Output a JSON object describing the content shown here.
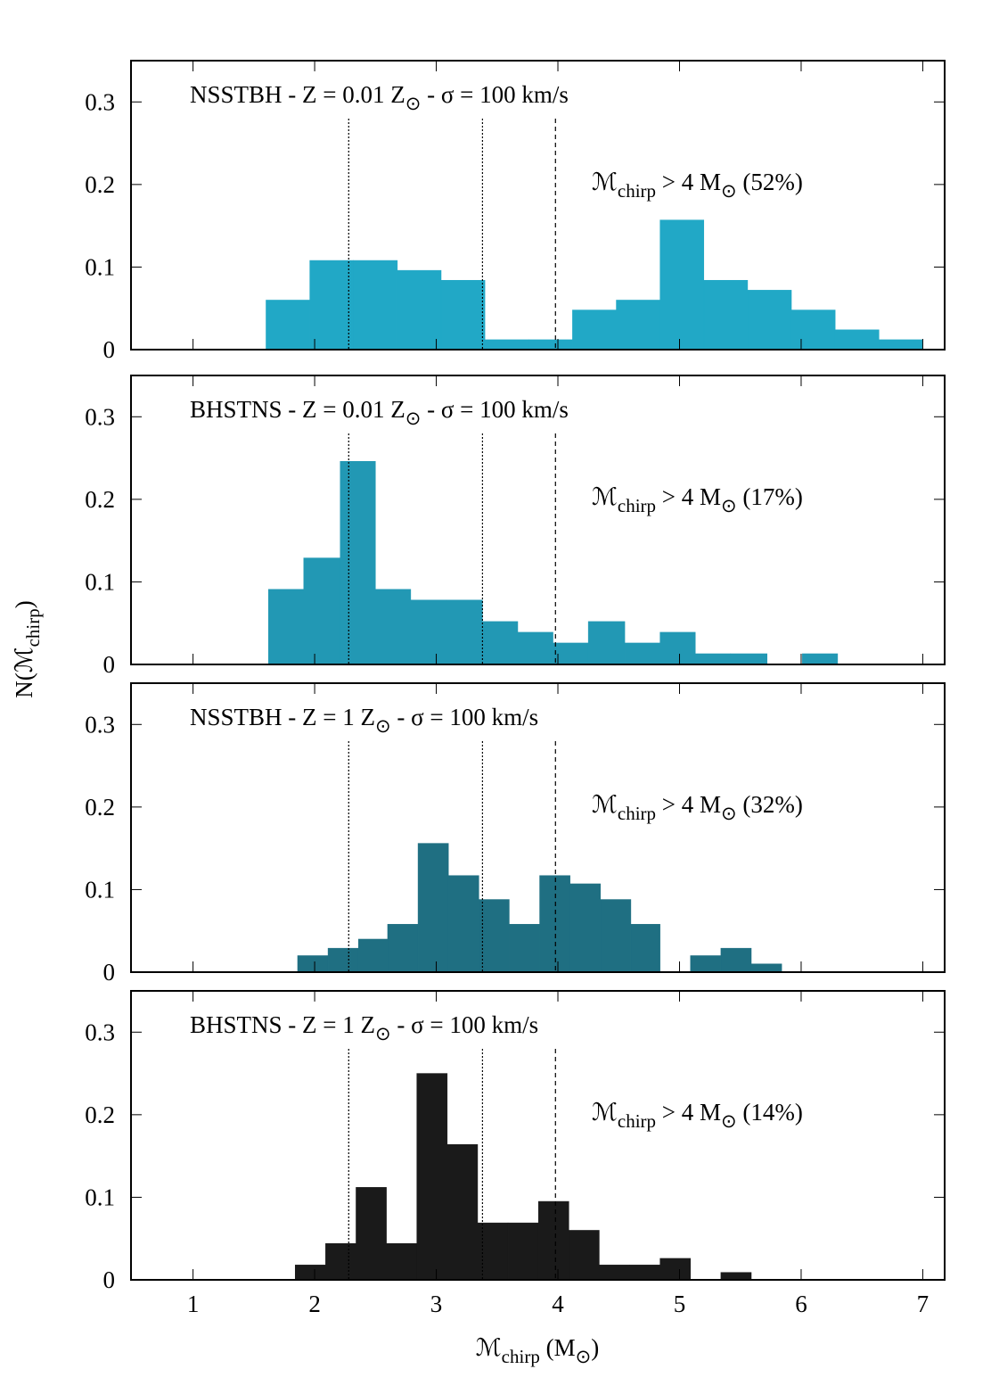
{
  "ylabel": [
    "N(ℳ",
    "chirp",
    ")"
  ],
  "xlabel": [
    "ℳ",
    "chirp",
    " (M",
    "⊙",
    ")"
  ],
  "chart_data": [
    {
      "type": "histogram",
      "title": [
        "NSSTBH - Z = 0.01 Z",
        "⊙",
        " - σ = 100 km/s"
      ],
      "annotation": [
        "ℳ",
        "chirp",
        " > 4 M",
        "⊙",
        " (52%)"
      ],
      "bins": [
        1.6,
        1.96,
        2.32,
        2.68,
        3.04,
        3.4,
        3.76,
        4.12,
        4.48,
        4.84,
        5.2,
        5.56,
        5.92,
        6.28,
        6.64,
        7.0
      ],
      "counts": [
        0.06,
        0.108,
        0.108,
        0.096,
        0.084,
        0.012,
        0.012,
        0.048,
        0.06,
        0.157,
        0.084,
        0.072,
        0.048,
        0.024,
        0.012
      ],
      "color": "#21a8c6",
      "xlim": [
        0.49,
        7.18
      ],
      "ylim": [
        0,
        0.35
      ],
      "xticks": [
        1,
        2,
        3,
        4,
        5,
        6,
        7
      ],
      "yticks": [
        0,
        0.1,
        0.2,
        0.3
      ],
      "show_xtick_labels": false,
      "vlines": [
        {
          "x": 2.28,
          "style": "dotted"
        },
        {
          "x": 3.38,
          "style": "dotted"
        },
        {
          "x": 3.98,
          "style": "dashed"
        }
      ]
    },
    {
      "type": "histogram",
      "title": [
        "BHSTNS - Z = 0.01 Z",
        "⊙",
        " - σ = 100 km/s"
      ],
      "annotation": [
        "ℳ",
        "chirp",
        " > 4 M",
        "⊙",
        " (17%)"
      ],
      "bins": [
        1.62,
        1.91,
        2.21,
        2.5,
        2.79,
        3.08,
        3.38,
        3.67,
        3.96,
        4.25,
        4.55,
        4.84,
        5.13,
        5.42,
        5.72,
        6.01,
        6.3
      ],
      "counts": [
        0.091,
        0.129,
        0.246,
        0.091,
        0.078,
        0.078,
        0.052,
        0.039,
        0.026,
        0.052,
        0.026,
        0.039,
        0.013,
        0.013,
        0,
        0.013
      ],
      "color": "#2298b4",
      "xlim": [
        0.49,
        7.18
      ],
      "ylim": [
        0,
        0.35
      ],
      "xticks": [
        1,
        2,
        3,
        4,
        5,
        6,
        7
      ],
      "yticks": [
        0,
        0.1,
        0.2,
        0.3
      ],
      "show_xtick_labels": false,
      "vlines": [
        {
          "x": 2.28,
          "style": "dotted"
        },
        {
          "x": 3.38,
          "style": "dotted"
        },
        {
          "x": 3.98,
          "style": "dashed"
        }
      ]
    },
    {
      "type": "histogram",
      "title": [
        "NSSTBH - Z = 1 Z",
        "⊙",
        " - σ = 100 km/s"
      ],
      "annotation": [
        "ℳ",
        "chirp",
        " > 4 M",
        "⊙",
        " (32%)"
      ],
      "bins": [
        1.86,
        2.11,
        2.36,
        2.6,
        2.85,
        3.1,
        3.35,
        3.6,
        3.85,
        4.1,
        4.35,
        4.6,
        4.84,
        5.09,
        5.34,
        5.59,
        5.84
      ],
      "counts": [
        0.02,
        0.029,
        0.04,
        0.058,
        0.156,
        0.117,
        0.088,
        0.058,
        0.117,
        0.107,
        0.088,
        0.058,
        0,
        0.02,
        0.029,
        0.01
      ],
      "color": "#1f6f82",
      "xlim": [
        0.49,
        7.18
      ],
      "ylim": [
        0,
        0.35
      ],
      "xticks": [
        1,
        2,
        3,
        4,
        5,
        6,
        7
      ],
      "yticks": [
        0,
        0.1,
        0.2,
        0.3
      ],
      "show_xtick_labels": false,
      "vlines": [
        {
          "x": 2.28,
          "style": "dotted"
        },
        {
          "x": 3.38,
          "style": "dotted"
        },
        {
          "x": 3.98,
          "style": "dashed"
        }
      ]
    },
    {
      "type": "histogram",
      "title": [
        "BHSTNS - Z = 1 Z",
        "⊙",
        " - σ = 100 km/s"
      ],
      "annotation": [
        "ℳ",
        "chirp",
        " > 4 M",
        "⊙",
        " (14%)"
      ],
      "bins": [
        1.84,
        2.09,
        2.34,
        2.59,
        2.84,
        3.09,
        3.34,
        3.59,
        3.84,
        4.09,
        4.34,
        4.59,
        4.84,
        5.09,
        5.34,
        5.59
      ],
      "counts": [
        0.018,
        0.044,
        0.112,
        0.044,
        0.25,
        0.164,
        0.069,
        0.069,
        0.095,
        0.06,
        0.018,
        0.018,
        0.026,
        0,
        0.009
      ],
      "color": "#1a1a1a",
      "xlim": [
        0.49,
        7.18
      ],
      "ylim": [
        0,
        0.35
      ],
      "xticks": [
        1,
        2,
        3,
        4,
        5,
        6,
        7
      ],
      "yticks": [
        0,
        0.1,
        0.2,
        0.3
      ],
      "show_xtick_labels": true,
      "vlines": [
        {
          "x": 2.28,
          "style": "dotted"
        },
        {
          "x": 3.38,
          "style": "dotted"
        },
        {
          "x": 3.98,
          "style": "dashed"
        }
      ]
    }
  ]
}
